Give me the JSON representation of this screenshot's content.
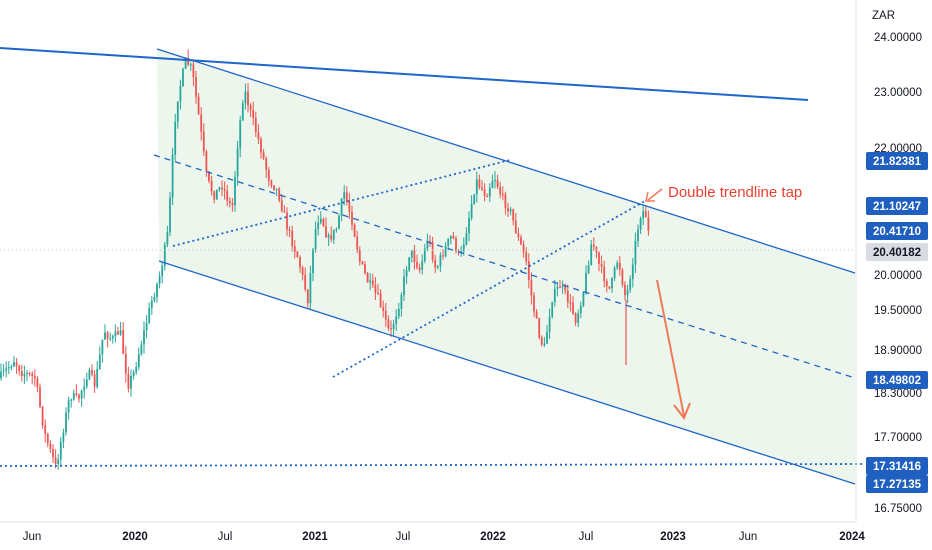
{
  "chart_data": {
    "type": "candlestick",
    "currency_label": "ZAR",
    "x_ticks": [
      "Jun",
      "2020",
      "Jul",
      "2021",
      "Jul",
      "2022",
      "Jul",
      "2023",
      "Jun",
      "2024"
    ],
    "y_ticks": [
      "24.00000",
      "23.00000",
      "22.00000",
      "20.00000",
      "19.50000",
      "18.90000",
      "18.30000",
      "17.70000",
      "16.75000"
    ],
    "price_tags": [
      {
        "label": "21.82381",
        "style": "blue"
      },
      {
        "label": "21.10247",
        "style": "blue"
      },
      {
        "label": "20.41710",
        "style": "blue"
      },
      {
        "label": "20.40182",
        "style": "current"
      },
      {
        "label": "18.49802",
        "style": "blue"
      },
      {
        "label": "17.31416",
        "style": "blue"
      },
      {
        "label": "17.27135",
        "style": "blue"
      }
    ],
    "annotation": "Double trendline tap",
    "colors": {
      "up": "#26a69a",
      "down": "#ef5350",
      "trendline": "#1e66c8",
      "channel_fill": "#e9f5e9",
      "arrow": "#f0795a",
      "tag_blue": "#1f5fbf",
      "tag_current": "#d9dce3"
    }
  }
}
